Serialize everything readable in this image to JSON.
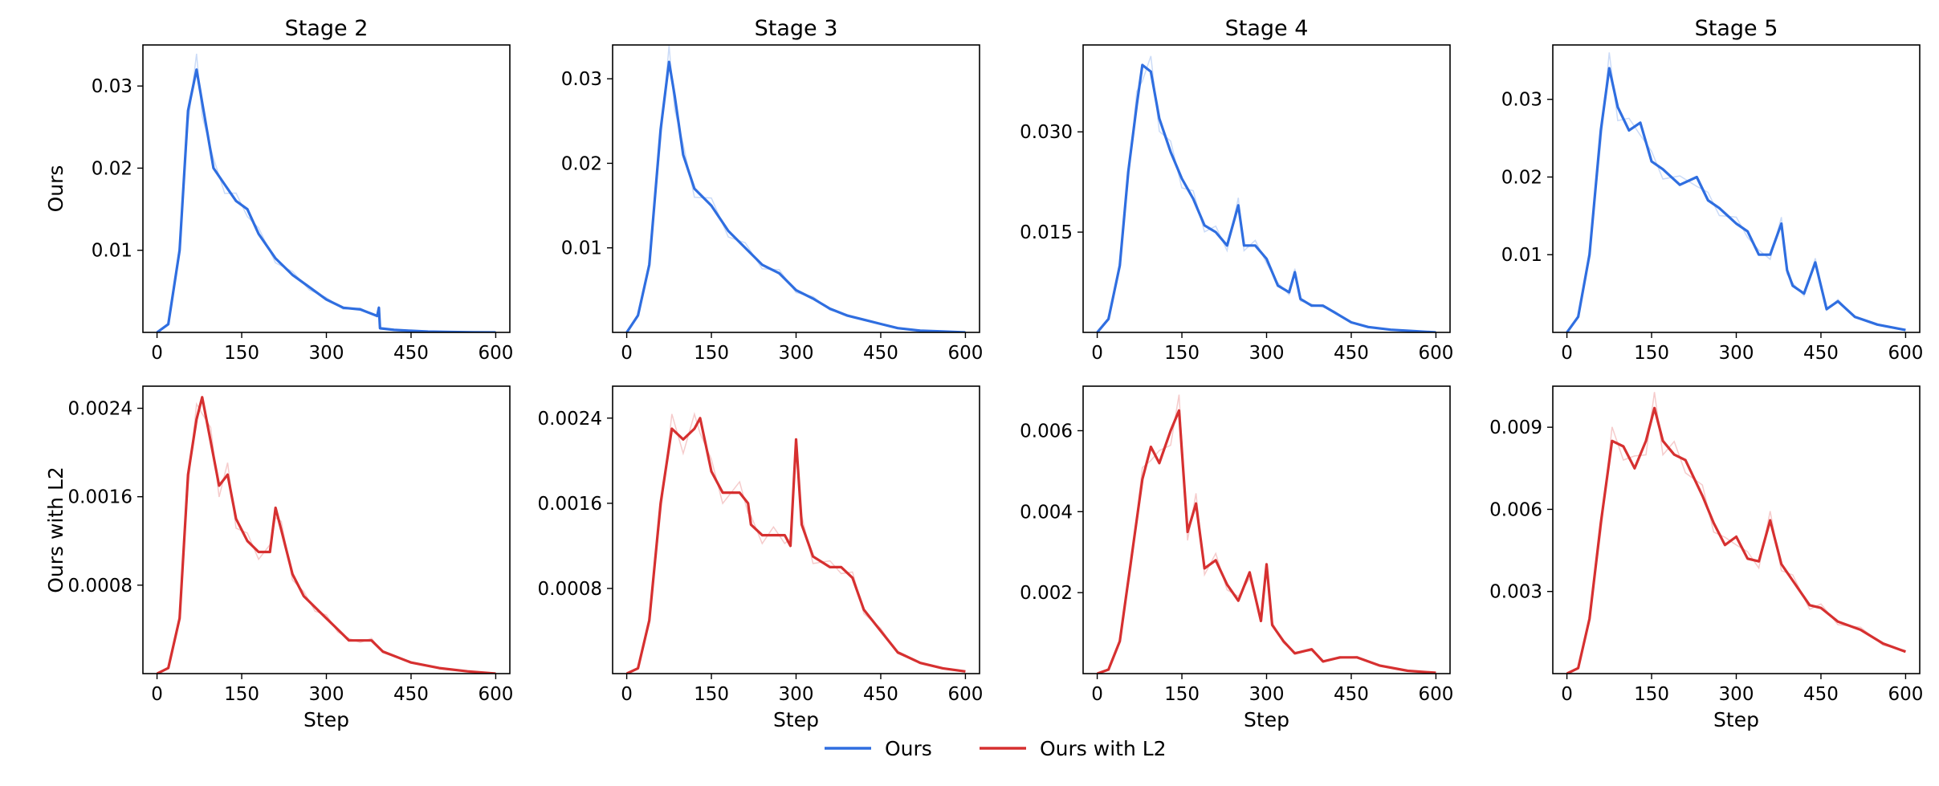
{
  "colors": {
    "ours": "#2f6ee0",
    "ours_l2": "#d63030"
  },
  "row_labels": [
    "Ours",
    "Ours with L2"
  ],
  "legend": {
    "placement": "bottom-center",
    "items": [
      "Ours",
      "Ours with L2"
    ]
  },
  "chart_data": [
    {
      "type": "line",
      "title": "Stage 2",
      "ylabel": "Ours",
      "xlabel": "",
      "xlim": [
        -25,
        625
      ],
      "ylim": [
        0,
        0.035
      ],
      "xticks": [
        "0",
        "150",
        "300",
        "450",
        "600"
      ],
      "yticks": [
        0.01,
        0.02,
        0.03
      ],
      "ytick_labels": [
        "0.01",
        "0.02",
        "0.03"
      ],
      "series": [
        {
          "name": "Ours",
          "x": [
            0,
            20,
            40,
            55,
            70,
            80,
            100,
            120,
            140,
            160,
            180,
            210,
            240,
            270,
            300,
            330,
            360,
            390,
            393,
            395,
            420,
            450,
            480,
            520,
            560,
            600
          ],
          "y": [
            0,
            0.001,
            0.01,
            0.027,
            0.032,
            0.028,
            0.02,
            0.018,
            0.016,
            0.015,
            0.012,
            0.009,
            0.007,
            0.0055,
            0.004,
            0.003,
            0.0028,
            0.002,
            0.003,
            0.0005,
            0.0003,
            0.0002,
            0.0001,
            5e-05,
            2e-05,
            0
          ]
        }
      ]
    },
    {
      "type": "line",
      "title": "Stage 3",
      "ylabel": "",
      "xlabel": "",
      "xlim": [
        -25,
        625
      ],
      "ylim": [
        0,
        0.034
      ],
      "xticks": [
        "0",
        "150",
        "300",
        "450",
        "600"
      ],
      "yticks": [
        0.01,
        0.02,
        0.03
      ],
      "ytick_labels": [
        "0.01",
        "0.02",
        "0.03"
      ],
      "series": [
        {
          "name": "Ours",
          "x": [
            0,
            20,
            40,
            60,
            75,
            85,
            100,
            120,
            150,
            180,
            210,
            240,
            270,
            300,
            330,
            360,
            390,
            420,
            450,
            480,
            520,
            560,
            600
          ],
          "y": [
            0,
            0.002,
            0.008,
            0.024,
            0.032,
            0.028,
            0.021,
            0.017,
            0.015,
            0.012,
            0.01,
            0.008,
            0.007,
            0.005,
            0.004,
            0.0028,
            0.002,
            0.0015,
            0.001,
            0.0005,
            0.0002,
            0.0001,
            0
          ]
        }
      ]
    },
    {
      "type": "line",
      "title": "Stage 4",
      "ylabel": "",
      "xlabel": "",
      "xlim": [
        -25,
        625
      ],
      "ylim": [
        0,
        0.043
      ],
      "xticks": [
        "0",
        "150",
        "300",
        "450",
        "600"
      ],
      "yticks": [
        0.015,
        0.03
      ],
      "ytick_labels": [
        "0.015",
        "0.030"
      ],
      "series": [
        {
          "name": "Ours",
          "x": [
            0,
            20,
            40,
            55,
            70,
            80,
            95,
            110,
            130,
            150,
            170,
            190,
            210,
            230,
            250,
            260,
            280,
            300,
            320,
            340,
            350,
            360,
            380,
            400,
            420,
            450,
            480,
            520,
            560,
            600
          ],
          "y": [
            0,
            0.002,
            0.01,
            0.024,
            0.034,
            0.04,
            0.039,
            0.032,
            0.027,
            0.023,
            0.02,
            0.016,
            0.015,
            0.013,
            0.019,
            0.013,
            0.013,
            0.011,
            0.007,
            0.006,
            0.009,
            0.005,
            0.004,
            0.004,
            0.003,
            0.0015,
            0.0008,
            0.0004,
            0.0002,
            0
          ]
        }
      ]
    },
    {
      "type": "line",
      "title": "Stage 5",
      "ylabel": "",
      "xlabel": "",
      "xlim": [
        -25,
        625
      ],
      "ylim": [
        0,
        0.037
      ],
      "xticks": [
        "0",
        "150",
        "300",
        "450",
        "600"
      ],
      "yticks": [
        0.01,
        0.02,
        0.03
      ],
      "ytick_labels": [
        "0.01",
        "0.02",
        "0.03"
      ],
      "series": [
        {
          "name": "Ours",
          "x": [
            0,
            20,
            40,
            60,
            75,
            90,
            110,
            130,
            150,
            170,
            200,
            230,
            250,
            270,
            300,
            320,
            340,
            360,
            380,
            390,
            400,
            420,
            440,
            460,
            480,
            510,
            550,
            600
          ],
          "y": [
            0,
            0.002,
            0.01,
            0.026,
            0.034,
            0.029,
            0.026,
            0.027,
            0.022,
            0.021,
            0.019,
            0.02,
            0.017,
            0.016,
            0.014,
            0.013,
            0.01,
            0.01,
            0.014,
            0.008,
            0.006,
            0.005,
            0.009,
            0.003,
            0.004,
            0.002,
            0.001,
            0.0003
          ]
        }
      ]
    },
    {
      "type": "line",
      "title": "",
      "ylabel": "Ours with L2",
      "xlabel": "Step",
      "xlim": [
        -25,
        625
      ],
      "ylim": [
        0,
        0.0026
      ],
      "xticks": [
        "0",
        "150",
        "300",
        "450",
        "600"
      ],
      "yticks": [
        0.0008,
        0.0016,
        0.0024
      ],
      "ytick_labels": [
        "0.0008",
        "0.0016",
        "0.0024"
      ],
      "series": [
        {
          "name": "Ours with L2",
          "x": [
            0,
            20,
            40,
            55,
            70,
            80,
            95,
            110,
            125,
            140,
            160,
            180,
            200,
            210,
            220,
            240,
            260,
            280,
            300,
            320,
            340,
            360,
            380,
            400,
            450,
            500,
            550,
            600
          ],
          "y": [
            0,
            5e-05,
            0.0005,
            0.0018,
            0.0023,
            0.0025,
            0.0021,
            0.0017,
            0.0018,
            0.0014,
            0.0012,
            0.0011,
            0.0011,
            0.0015,
            0.0013,
            0.0009,
            0.0007,
            0.0006,
            0.0005,
            0.0004,
            0.0003,
            0.0003,
            0.0003,
            0.0002,
            0.0001,
            5e-05,
            2e-05,
            0
          ]
        }
      ]
    },
    {
      "type": "line",
      "title": "",
      "ylabel": "",
      "xlabel": "Step",
      "xlim": [
        -25,
        625
      ],
      "ylim": [
        0,
        0.0027
      ],
      "xticks": [
        "0",
        "150",
        "300",
        "450",
        "600"
      ],
      "yticks": [
        0.0008,
        0.0016,
        0.0024
      ],
      "ytick_labels": [
        "0.0008",
        "0.0016",
        "0.0024"
      ],
      "series": [
        {
          "name": "Ours with L2",
          "x": [
            0,
            20,
            40,
            60,
            80,
            100,
            120,
            130,
            150,
            170,
            200,
            215,
            220,
            240,
            260,
            280,
            290,
            300,
            310,
            330,
            360,
            380,
            400,
            420,
            450,
            480,
            520,
            560,
            600
          ],
          "y": [
            0,
            5e-05,
            0.0005,
            0.0016,
            0.0023,
            0.0022,
            0.0023,
            0.0024,
            0.0019,
            0.0017,
            0.0017,
            0.0016,
            0.0014,
            0.0013,
            0.0013,
            0.0013,
            0.0012,
            0.0022,
            0.0014,
            0.0011,
            0.001,
            0.001,
            0.0009,
            0.0006,
            0.0004,
            0.0002,
            0.0001,
            5e-05,
            2e-05
          ]
        }
      ]
    },
    {
      "type": "line",
      "title": "",
      "ylabel": "",
      "xlabel": "Step",
      "xlim": [
        -25,
        625
      ],
      "ylim": [
        0,
        0.0071
      ],
      "xticks": [
        "0",
        "150",
        "300",
        "450",
        "600"
      ],
      "yticks": [
        0.002,
        0.004,
        0.006
      ],
      "ytick_labels": [
        "0.002",
        "0.004",
        "0.006"
      ],
      "series": [
        {
          "name": "Ours with L2",
          "x": [
            0,
            20,
            40,
            60,
            80,
            95,
            110,
            130,
            145,
            160,
            175,
            190,
            210,
            230,
            250,
            270,
            290,
            300,
            310,
            330,
            350,
            380,
            400,
            430,
            460,
            500,
            550,
            600
          ],
          "y": [
            0,
            0.0001,
            0.0008,
            0.0028,
            0.0048,
            0.0056,
            0.0052,
            0.006,
            0.0065,
            0.0035,
            0.0042,
            0.0026,
            0.0028,
            0.0022,
            0.0018,
            0.0025,
            0.0013,
            0.0027,
            0.0012,
            0.0008,
            0.0005,
            0.0006,
            0.0003,
            0.0004,
            0.0004,
            0.0002,
            7e-05,
            2e-05
          ]
        }
      ]
    },
    {
      "type": "line",
      "title": "",
      "ylabel": "",
      "xlabel": "Step",
      "xlim": [
        -25,
        625
      ],
      "ylim": [
        0,
        0.0105
      ],
      "xticks": [
        "0",
        "150",
        "300",
        "450",
        "600"
      ],
      "yticks": [
        0.003,
        0.006,
        0.009
      ],
      "ytick_labels": [
        "0.003",
        "0.006",
        "0.009"
      ],
      "series": [
        {
          "name": "Ours with L2",
          "x": [
            0,
            20,
            40,
            60,
            80,
            100,
            120,
            140,
            155,
            170,
            190,
            210,
            240,
            260,
            280,
            300,
            320,
            340,
            360,
            380,
            400,
            430,
            450,
            480,
            520,
            560,
            600
          ],
          "y": [
            0,
            0.0002,
            0.002,
            0.0055,
            0.0085,
            0.0083,
            0.0075,
            0.0085,
            0.0097,
            0.0085,
            0.008,
            0.0078,
            0.0065,
            0.0055,
            0.0047,
            0.005,
            0.0042,
            0.0041,
            0.0056,
            0.004,
            0.0034,
            0.0025,
            0.0024,
            0.0019,
            0.0016,
            0.0011,
            0.0008
          ]
        }
      ]
    }
  ]
}
